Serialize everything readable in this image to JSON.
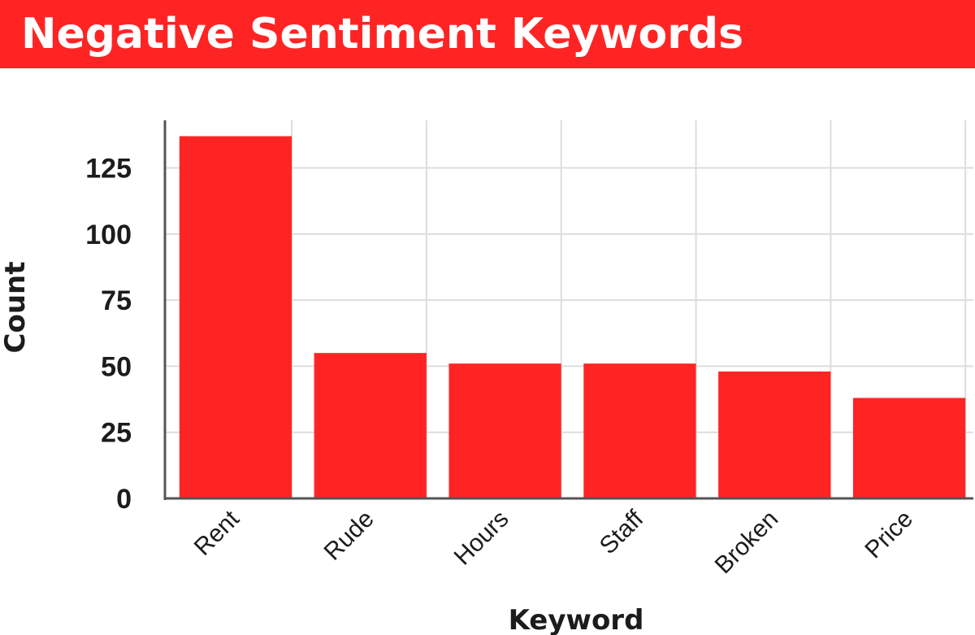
{
  "title": "Negative Sentiment Keywords",
  "colors": {
    "banner": "#ff2424",
    "bar": "#ff2424",
    "axis": "#555555",
    "grid": "#dddddd",
    "text": "#1c1c1c"
  },
  "chart_data": {
    "type": "bar",
    "title": "Negative Sentiment Keywords",
    "xlabel": "Keyword",
    "ylabel": "Count",
    "categories": [
      "Rent",
      "Rude",
      "Hours",
      "Staff",
      "Broken",
      "Price"
    ],
    "values": [
      137,
      55,
      51,
      51,
      48,
      38
    ],
    "yticks": [
      0,
      25,
      50,
      75,
      100,
      125
    ],
    "ylim": [
      0,
      143
    ],
    "grid": true,
    "legend": "none"
  }
}
